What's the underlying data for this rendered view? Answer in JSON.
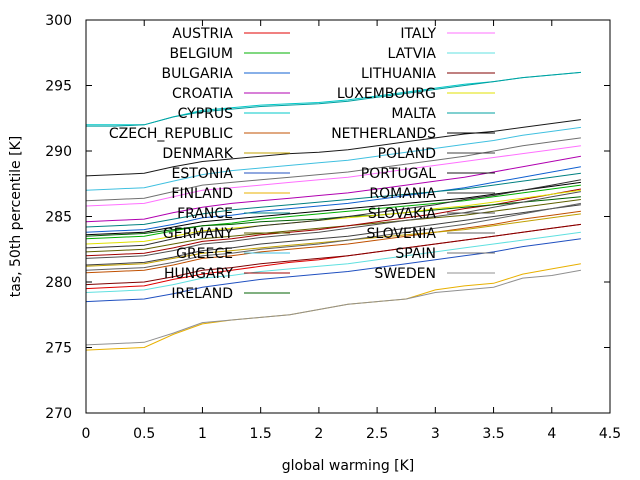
{
  "chart_data": {
    "type": "line",
    "xlabel": "global warming [K]",
    "ylabel": "tas, 50th percentile [K]",
    "xlim": [
      0,
      4.5
    ],
    "ylim": [
      270,
      300
    ],
    "xticks": [
      "0",
      "0.5",
      "1",
      "1.5",
      "2",
      "2.5",
      "3",
      "3.5",
      "4",
      "4.5"
    ],
    "yticks": [
      "270",
      "275",
      "280",
      "285",
      "290",
      "295",
      "300"
    ],
    "grid": false,
    "legend_position": "top, two columns inside plot",
    "x": [
      0,
      0.25,
      0.5,
      0.75,
      1,
      1.25,
      1.5,
      1.75,
      2,
      2.25,
      2.5,
      2.75,
      3,
      3.25,
      3.5,
      3.75,
      4,
      4.25
    ],
    "series": [
      {
        "name": "AUSTRIA",
        "color": "#e00000",
        "values": [
          279.5,
          279.6,
          279.7,
          280.2,
          280.6,
          280.9,
          281.2,
          281.5,
          281.7,
          282.0,
          282.3,
          282.6,
          282.9,
          283.2,
          283.5,
          283.8,
          284.1,
          284.4
        ]
      },
      {
        "name": "BELGIUM",
        "color": "#00b000",
        "values": [
          283.3,
          283.4,
          283.5,
          283.9,
          284.3,
          284.5,
          284.8,
          285.0,
          285.2,
          285.4,
          285.6,
          285.8,
          286.0,
          286.2,
          286.5,
          286.8,
          287.1,
          287.4
        ]
      },
      {
        "name": "BULGARIA",
        "color": "#1060d0",
        "values": [
          283.8,
          283.9,
          284.0,
          284.4,
          284.9,
          285.1,
          285.4,
          285.6,
          285.8,
          286.0,
          286.3,
          286.6,
          286.9,
          287.2,
          287.6,
          288.0,
          288.4,
          288.8
        ]
      },
      {
        "name": "CROATIA",
        "color": "#b000b0",
        "values": [
          284.6,
          284.7,
          284.8,
          285.3,
          285.7,
          286.0,
          286.2,
          286.4,
          286.6,
          286.8,
          287.1,
          287.4,
          287.7,
          288.0,
          288.4,
          288.8,
          289.2,
          289.6
        ]
      },
      {
        "name": "CYPRUS",
        "color": "#00c8c8",
        "values": [
          292.0,
          292.0,
          292.0,
          292.6,
          293.1,
          293.3,
          293.5,
          293.6,
          293.7,
          293.9,
          294.2,
          294.5,
          294.8,
          295.1,
          295.3,
          295.6,
          295.8,
          296.0
        ]
      },
      {
        "name": "CZECH_REPUBLIC",
        "color": "#c05000",
        "values": [
          280.7,
          280.8,
          280.9,
          281.3,
          281.8,
          282.0,
          282.3,
          282.5,
          282.7,
          282.9,
          283.2,
          283.5,
          283.8,
          284.1,
          284.4,
          284.8,
          285.1,
          285.4
        ]
      },
      {
        "name": "DENMARK",
        "color": "#c0a000",
        "values": [
          281.2,
          281.3,
          281.4,
          281.8,
          282.2,
          282.4,
          282.6,
          282.8,
          283.0,
          283.2,
          283.4,
          283.6,
          283.8,
          284.0,
          284.3,
          284.6,
          284.9,
          285.2
        ]
      },
      {
        "name": "ESTONIA",
        "color": "#2050c0",
        "values": [
          278.5,
          278.6,
          278.7,
          279.1,
          279.6,
          279.9,
          280.2,
          280.4,
          280.6,
          280.8,
          281.1,
          281.4,
          281.7,
          282.0,
          282.3,
          282.7,
          283.0,
          283.3
        ]
      },
      {
        "name": "FINLAND",
        "color": "#e8b000",
        "values": [
          274.8,
          274.9,
          275.0,
          276.0,
          276.8,
          277.1,
          277.3,
          277.5,
          277.9,
          278.3,
          278.5,
          278.7,
          279.4,
          279.7,
          279.9,
          280.6,
          281.0,
          281.4
        ]
      },
      {
        "name": "FRANCE",
        "color": "#008080",
        "values": [
          284.2,
          284.3,
          284.4,
          284.8,
          285.2,
          285.5,
          285.7,
          285.9,
          286.1,
          286.3,
          286.5,
          286.7,
          286.9,
          287.1,
          287.4,
          287.7,
          288.0,
          288.3
        ]
      },
      {
        "name": "GERMANY",
        "color": "#606000",
        "values": [
          282.3,
          282.4,
          282.5,
          282.9,
          283.3,
          283.5,
          283.7,
          283.9,
          284.1,
          284.3,
          284.5,
          284.7,
          284.9,
          285.1,
          285.4,
          285.7,
          286.0,
          286.3
        ]
      },
      {
        "name": "GREECE",
        "color": "#40c0e0",
        "values": [
          287.0,
          287.1,
          287.2,
          287.7,
          288.2,
          288.5,
          288.7,
          288.9,
          289.1,
          289.3,
          289.6,
          289.9,
          290.2,
          290.5,
          290.8,
          291.2,
          291.5,
          291.8
        ]
      },
      {
        "name": "HUNGARY",
        "color": "#a00000",
        "values": [
          282.0,
          282.1,
          282.2,
          282.6,
          283.1,
          283.3,
          283.6,
          283.8,
          284.0,
          284.3,
          284.6,
          284.9,
          285.2,
          285.6,
          285.9,
          286.3,
          286.7,
          287.1
        ]
      },
      {
        "name": "IRELAND",
        "color": "#006000",
        "values": [
          283.5,
          283.6,
          283.7,
          284.0,
          284.3,
          284.4,
          284.6,
          284.7,
          284.8,
          285.0,
          285.1,
          285.3,
          285.5,
          285.7,
          285.9,
          286.1,
          286.3,
          286.5
        ]
      },
      {
        "name": "ITALY",
        "color": "#ff70ff",
        "values": [
          285.8,
          285.9,
          286.0,
          286.5,
          287.0,
          287.2,
          287.4,
          287.6,
          287.8,
          288.0,
          288.3,
          288.6,
          288.9,
          289.2,
          289.5,
          289.8,
          290.1,
          290.4
        ]
      },
      {
        "name": "LATVIA",
        "color": "#60e0e0",
        "values": [
          279.2,
          279.3,
          279.4,
          279.8,
          280.3,
          280.5,
          280.8,
          281.0,
          281.2,
          281.4,
          281.7,
          282.0,
          282.3,
          282.6,
          282.9,
          283.2,
          283.5,
          283.8
        ]
      },
      {
        "name": "LITHUANIA",
        "color": "#800000",
        "values": [
          279.8,
          279.9,
          280.0,
          280.4,
          280.9,
          281.1,
          281.4,
          281.6,
          281.8,
          282.0,
          282.3,
          282.6,
          282.9,
          283.2,
          283.5,
          283.8,
          284.1,
          284.4
        ]
      },
      {
        "name": "LUXEMBOURG",
        "color": "#e0e000",
        "values": [
          282.9,
          283.0,
          283.1,
          283.5,
          283.9,
          284.1,
          284.3,
          284.5,
          284.7,
          284.9,
          285.1,
          285.3,
          285.6,
          285.8,
          286.1,
          286.4,
          286.7,
          287.0
        ]
      },
      {
        "name": "MALTA",
        "color": "#00a0a0",
        "values": [
          291.9,
          291.9,
          292.0,
          292.6,
          293.0,
          293.2,
          293.4,
          293.5,
          293.6,
          293.8,
          294.1,
          294.4,
          294.7,
          295.0,
          295.3,
          295.6,
          295.8,
          296.0
        ]
      },
      {
        "name": "NETHERLANDS",
        "color": "#000000",
        "values": [
          283.6,
          283.7,
          283.8,
          284.2,
          284.6,
          284.8,
          285.0,
          285.2,
          285.4,
          285.6,
          285.8,
          286.0,
          286.2,
          286.4,
          286.7,
          287.0,
          287.3,
          287.6
        ]
      },
      {
        "name": "POLAND",
        "color": "#404040",
        "values": [
          281.3,
          281.4,
          281.5,
          281.9,
          282.4,
          282.6,
          282.9,
          283.1,
          283.3,
          283.5,
          283.8,
          284.1,
          284.4,
          284.7,
          285.0,
          285.3,
          285.6,
          285.9
        ]
      },
      {
        "name": "PORTUGAL",
        "color": "#1a1a1a",
        "values": [
          288.1,
          288.2,
          288.3,
          288.8,
          289.2,
          289.4,
          289.6,
          289.8,
          289.9,
          290.1,
          290.4,
          290.7,
          291.0,
          291.3,
          291.5,
          291.8,
          292.1,
          292.4
        ]
      },
      {
        "name": "ROMANIA",
        "color": "#303030",
        "values": [
          282.6,
          282.7,
          282.8,
          283.3,
          283.8,
          284.0,
          284.3,
          284.5,
          284.7,
          285.0,
          285.3,
          285.6,
          285.9,
          286.3,
          286.6,
          287.0,
          287.4,
          287.8
        ]
      },
      {
        "name": "SLOVAKIA",
        "color": "#505050",
        "values": [
          281.8,
          281.9,
          282.0,
          282.4,
          282.9,
          283.1,
          283.4,
          283.6,
          283.8,
          284.1,
          284.4,
          284.7,
          285.0,
          285.3,
          285.7,
          286.1,
          286.5,
          286.9
        ]
      },
      {
        "name": "SLOVENIA",
        "color": "#606060",
        "values": [
          280.9,
          281.0,
          281.1,
          281.5,
          282.0,
          282.2,
          282.5,
          282.7,
          282.9,
          283.2,
          283.5,
          283.8,
          284.1,
          284.4,
          284.8,
          285.2,
          285.6,
          286.0
        ]
      },
      {
        "name": "SPAIN",
        "color": "#707070",
        "values": [
          286.2,
          286.3,
          286.4,
          286.9,
          287.4,
          287.6,
          287.8,
          288.0,
          288.2,
          288.4,
          288.7,
          289.0,
          289.3,
          289.6,
          290.0,
          290.4,
          290.7,
          291.0
        ]
      },
      {
        "name": "SWEDEN",
        "color": "#909090",
        "values": [
          275.2,
          275.3,
          275.4,
          276.1,
          276.9,
          277.1,
          277.3,
          277.5,
          277.9,
          278.3,
          278.5,
          278.7,
          279.2,
          279.4,
          279.6,
          280.3,
          280.5,
          280.9
        ]
      }
    ]
  }
}
